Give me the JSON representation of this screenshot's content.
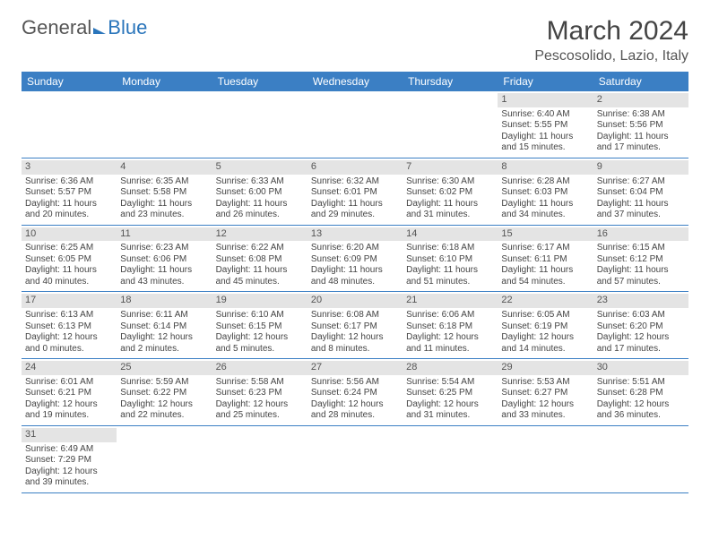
{
  "logo": {
    "part1": "General",
    "part2": "Blue"
  },
  "title": "March 2024",
  "location": "Pescosolido, Lazio, Italy",
  "weekday_labels": [
    "Sunday",
    "Monday",
    "Tuesday",
    "Wednesday",
    "Thursday",
    "Friday",
    "Saturday"
  ],
  "colors": {
    "header_bg": "#3b7fc4",
    "header_text": "#ffffff",
    "daynum_bg": "#e4e4e4",
    "row_divider": "#3b7fc4",
    "logo_blue": "#2a75bb",
    "body_text": "#444444"
  },
  "days": [
    {
      "n": 1,
      "sunrise": "6:40 AM",
      "sunset": "5:55 PM",
      "day_h": 11,
      "day_m": 15
    },
    {
      "n": 2,
      "sunrise": "6:38 AM",
      "sunset": "5:56 PM",
      "day_h": 11,
      "day_m": 17
    },
    {
      "n": 3,
      "sunrise": "6:36 AM",
      "sunset": "5:57 PM",
      "day_h": 11,
      "day_m": 20
    },
    {
      "n": 4,
      "sunrise": "6:35 AM",
      "sunset": "5:58 PM",
      "day_h": 11,
      "day_m": 23
    },
    {
      "n": 5,
      "sunrise": "6:33 AM",
      "sunset": "6:00 PM",
      "day_h": 11,
      "day_m": 26
    },
    {
      "n": 6,
      "sunrise": "6:32 AM",
      "sunset": "6:01 PM",
      "day_h": 11,
      "day_m": 29
    },
    {
      "n": 7,
      "sunrise": "6:30 AM",
      "sunset": "6:02 PM",
      "day_h": 11,
      "day_m": 31
    },
    {
      "n": 8,
      "sunrise": "6:28 AM",
      "sunset": "6:03 PM",
      "day_h": 11,
      "day_m": 34
    },
    {
      "n": 9,
      "sunrise": "6:27 AM",
      "sunset": "6:04 PM",
      "day_h": 11,
      "day_m": 37
    },
    {
      "n": 10,
      "sunrise": "6:25 AM",
      "sunset": "6:05 PM",
      "day_h": 11,
      "day_m": 40
    },
    {
      "n": 11,
      "sunrise": "6:23 AM",
      "sunset": "6:06 PM",
      "day_h": 11,
      "day_m": 43
    },
    {
      "n": 12,
      "sunrise": "6:22 AM",
      "sunset": "6:08 PM",
      "day_h": 11,
      "day_m": 45
    },
    {
      "n": 13,
      "sunrise": "6:20 AM",
      "sunset": "6:09 PM",
      "day_h": 11,
      "day_m": 48
    },
    {
      "n": 14,
      "sunrise": "6:18 AM",
      "sunset": "6:10 PM",
      "day_h": 11,
      "day_m": 51
    },
    {
      "n": 15,
      "sunrise": "6:17 AM",
      "sunset": "6:11 PM",
      "day_h": 11,
      "day_m": 54
    },
    {
      "n": 16,
      "sunrise": "6:15 AM",
      "sunset": "6:12 PM",
      "day_h": 11,
      "day_m": 57
    },
    {
      "n": 17,
      "sunrise": "6:13 AM",
      "sunset": "6:13 PM",
      "day_h": 12,
      "day_m": 0
    },
    {
      "n": 18,
      "sunrise": "6:11 AM",
      "sunset": "6:14 PM",
      "day_h": 12,
      "day_m": 2
    },
    {
      "n": 19,
      "sunrise": "6:10 AM",
      "sunset": "6:15 PM",
      "day_h": 12,
      "day_m": 5
    },
    {
      "n": 20,
      "sunrise": "6:08 AM",
      "sunset": "6:17 PM",
      "day_h": 12,
      "day_m": 8
    },
    {
      "n": 21,
      "sunrise": "6:06 AM",
      "sunset": "6:18 PM",
      "day_h": 12,
      "day_m": 11
    },
    {
      "n": 22,
      "sunrise": "6:05 AM",
      "sunset": "6:19 PM",
      "day_h": 12,
      "day_m": 14
    },
    {
      "n": 23,
      "sunrise": "6:03 AM",
      "sunset": "6:20 PM",
      "day_h": 12,
      "day_m": 17
    },
    {
      "n": 24,
      "sunrise": "6:01 AM",
      "sunset": "6:21 PM",
      "day_h": 12,
      "day_m": 19
    },
    {
      "n": 25,
      "sunrise": "5:59 AM",
      "sunset": "6:22 PM",
      "day_h": 12,
      "day_m": 22
    },
    {
      "n": 26,
      "sunrise": "5:58 AM",
      "sunset": "6:23 PM",
      "day_h": 12,
      "day_m": 25
    },
    {
      "n": 27,
      "sunrise": "5:56 AM",
      "sunset": "6:24 PM",
      "day_h": 12,
      "day_m": 28
    },
    {
      "n": 28,
      "sunrise": "5:54 AM",
      "sunset": "6:25 PM",
      "day_h": 12,
      "day_m": 31
    },
    {
      "n": 29,
      "sunrise": "5:53 AM",
      "sunset": "6:27 PM",
      "day_h": 12,
      "day_m": 33
    },
    {
      "n": 30,
      "sunrise": "5:51 AM",
      "sunset": "6:28 PM",
      "day_h": 12,
      "day_m": 36
    },
    {
      "n": 31,
      "sunrise": "6:49 AM",
      "sunset": "7:29 PM",
      "day_h": 12,
      "day_m": 39
    }
  ],
  "first_weekday_index": 5,
  "labels": {
    "sunrise_prefix": "Sunrise: ",
    "sunset_prefix": "Sunset: ",
    "daylight_prefix": "Daylight: ",
    "hours_word": " hours",
    "and_word": "and ",
    "minutes_word": " minutes."
  }
}
